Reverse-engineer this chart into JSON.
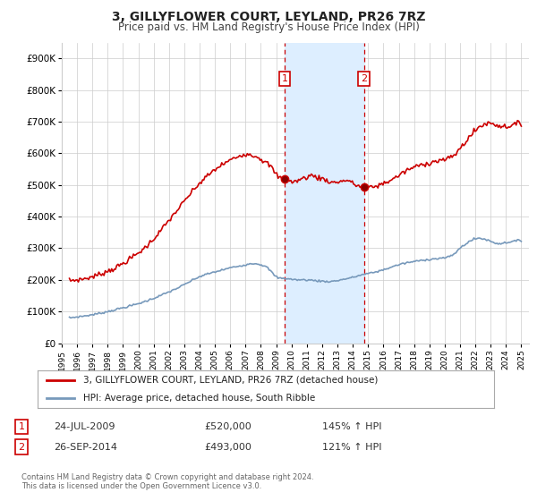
{
  "title1": "3, GILLYFLOWER COURT, LEYLAND, PR26 7RZ",
  "title2": "Price paid vs. HM Land Registry's House Price Index (HPI)",
  "legend_line1": "3, GILLYFLOWER COURT, LEYLAND, PR26 7RZ (detached house)",
  "legend_line2": "HPI: Average price, detached house, South Ribble",
  "transaction1": {
    "label": "1",
    "date": "24-JUL-2009",
    "price": "£520,000",
    "hpi": "145% ↑ HPI"
  },
  "transaction2": {
    "label": "2",
    "date": "26-SEP-2014",
    "price": "£493,000",
    "hpi": "121% ↑ HPI"
  },
  "footnote": "Contains HM Land Registry data © Crown copyright and database right 2024.\nThis data is licensed under the Open Government Licence v3.0.",
  "shading_start": 2009.55,
  "shading_end": 2014.73,
  "vline1_x": 2009.55,
  "vline2_x": 2014.73,
  "marker1_x": 2009.55,
  "marker1_y": 520000,
  "marker2_x": 2014.73,
  "marker2_y": 493000,
  "red_color": "#cc0000",
  "blue_color": "#7799bb",
  "shading_color": "#ddeeff",
  "vline_color": "#cc0000",
  "ylim": [
    0,
    950000
  ],
  "xlim_start": 1995.0,
  "xlim_end": 2025.5,
  "background_color": "#ffffff",
  "grid_color": "#cccccc"
}
